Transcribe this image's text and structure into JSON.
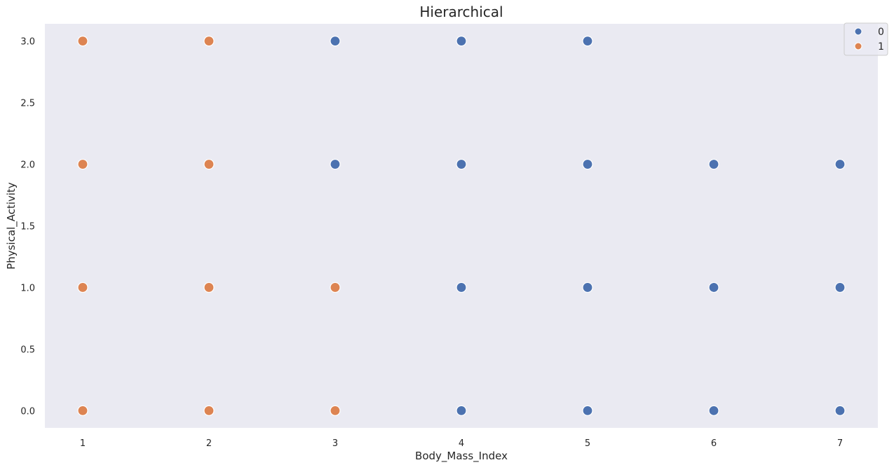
{
  "chart_data": {
    "type": "scatter",
    "title": "Hierarchical",
    "xlabel": "Body_Mass_Index",
    "ylabel": "Physical_Activity",
    "xlim": [
      0.7,
      7.3
    ],
    "ylim": [
      -0.14,
      3.14
    ],
    "xticks": [
      1,
      2,
      3,
      4,
      5,
      6,
      7
    ],
    "yticks": [
      0.0,
      0.5,
      1.0,
      1.5,
      2.0,
      2.5,
      3.0
    ],
    "ytick_labels": [
      "0.0",
      "0.5",
      "1.0",
      "1.5",
      "2.0",
      "2.5",
      "3.0"
    ],
    "grid": false,
    "legend_placement": "top-right",
    "background_color": "#eaeaf2",
    "series": [
      {
        "name": "0",
        "color": "#4c72b0",
        "points": [
          [
            3,
            3
          ],
          [
            4,
            3
          ],
          [
            5,
            3
          ],
          [
            3,
            2
          ],
          [
            4,
            2
          ],
          [
            5,
            2
          ],
          [
            6,
            2
          ],
          [
            7,
            2
          ],
          [
            4,
            1
          ],
          [
            5,
            1
          ],
          [
            6,
            1
          ],
          [
            7,
            1
          ],
          [
            4,
            0
          ],
          [
            5,
            0
          ],
          [
            6,
            0
          ],
          [
            7,
            0
          ]
        ]
      },
      {
        "name": "1",
        "color": "#dd8452",
        "points": [
          [
            1,
            3
          ],
          [
            2,
            3
          ],
          [
            1,
            2
          ],
          [
            2,
            2
          ],
          [
            1,
            1
          ],
          [
            2,
            1
          ],
          [
            3,
            1
          ],
          [
            1,
            0
          ],
          [
            2,
            0
          ],
          [
            3,
            0
          ]
        ]
      }
    ]
  }
}
